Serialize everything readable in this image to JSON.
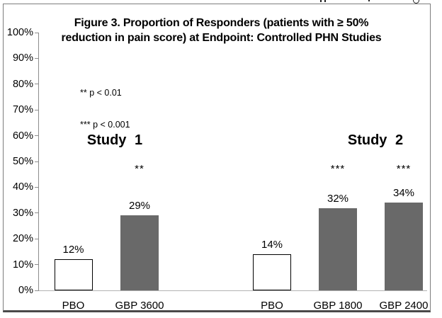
{
  "figure": {
    "title_line1": "Figure 3. Proportion of Responders (patients with ≥ 50%",
    "title_line2": "reduction in pain score) at Endpoint: Controlled PHN Studies",
    "legend_line1": "** p < 0.01",
    "legend_line2": "*** p < 0.001"
  },
  "chart_data": {
    "type": "bar",
    "title": "Figure 3. Proportion of Responders (patients with ≥ 50% reduction in pain score) at Endpoint: Controlled PHN Studies",
    "xlabel": "",
    "ylabel": "",
    "ylim": [
      0,
      100
    ],
    "grid": false,
    "y_ticks": [
      "100%",
      "90%",
      "80%",
      "70%",
      "60%",
      "50%",
      "40%",
      "30%",
      "20%",
      "10%",
      "0%"
    ],
    "annotations": [
      "** p < 0.01",
      "*** p < 0.001"
    ],
    "legend_position": "inside-top-left",
    "groups": [
      {
        "label": "Study 1",
        "bars": [
          {
            "category": "PBO",
            "value": 12,
            "value_label": "12%",
            "fill": "white",
            "significance": ""
          },
          {
            "category": "GBP 3600",
            "value": 29,
            "value_label": "29%",
            "fill": "gray",
            "significance": "**"
          }
        ]
      },
      {
        "label": "Study 2",
        "bars": [
          {
            "category": "PBO",
            "value": 14,
            "value_label": "14%",
            "fill": "white",
            "significance": ""
          },
          {
            "category": "GBP 1800",
            "value": 32,
            "value_label": "32%",
            "fill": "gray",
            "significance": "***"
          },
          {
            "category": "GBP 2400",
            "value": 34,
            "value_label": "34%",
            "fill": "gray",
            "significance": "***"
          }
        ]
      }
    ],
    "colors": {
      "bar_gray": "#696969",
      "bar_white": "#ffffff",
      "bar_border": "#000000",
      "axis_line": "#8c8c8c",
      "baseline": "#b3b3b3"
    }
  }
}
